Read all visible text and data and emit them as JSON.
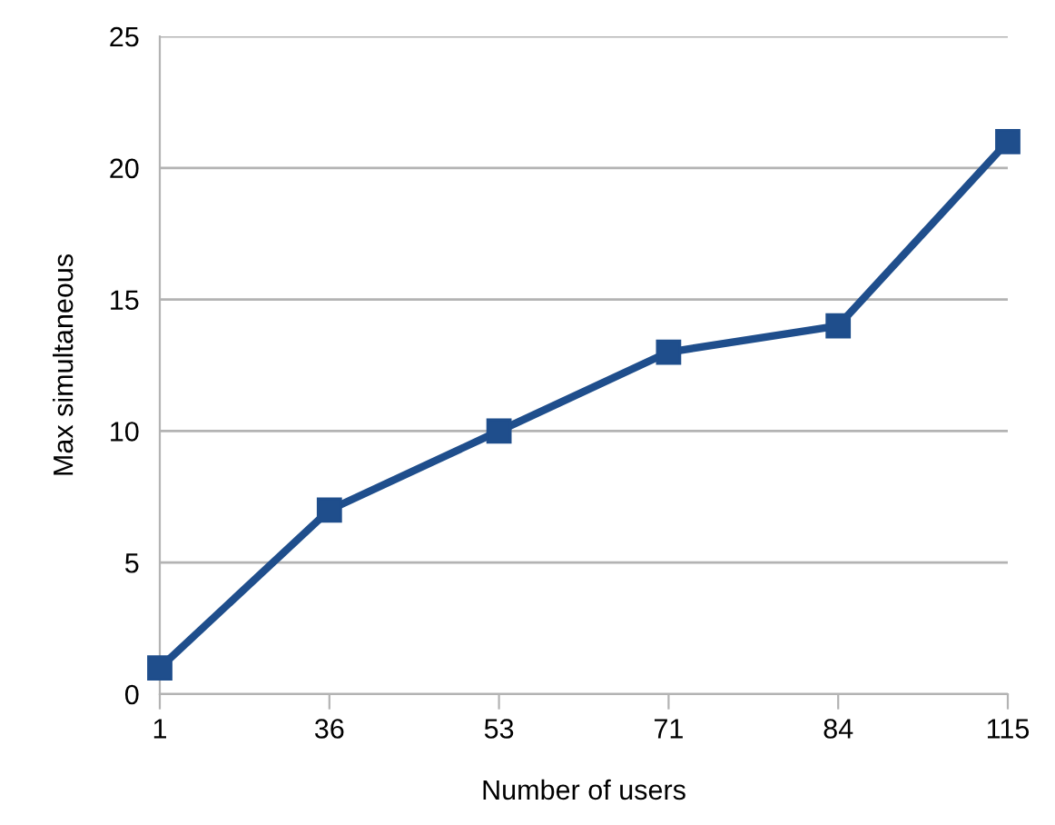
{
  "chart_data": {
    "type": "line",
    "xlabel": "Number of users",
    "ylabel": "Max simultaneous",
    "categories": [
      "1",
      "36",
      "53",
      "71",
      "84",
      "115"
    ],
    "series": [
      {
        "color": "#1f4e8c",
        "values": [
          1,
          7,
          10,
          13,
          14,
          21
        ]
      }
    ],
    "ylim": [
      0,
      25
    ],
    "yticks": [
      0,
      5,
      10,
      15,
      20,
      25
    ],
    "grid": "y",
    "marker": "square",
    "line_style": "solid"
  }
}
